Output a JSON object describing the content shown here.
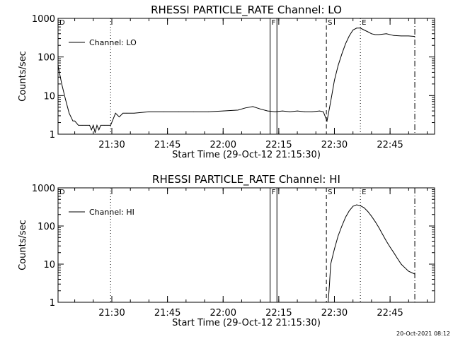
{
  "chart_data": [
    {
      "type": "line",
      "title": "RHESSI PARTICLE_RATE Channel: LO",
      "xlabel": "Start Time (29-Oct-12 21:15:30)",
      "ylabel": "Counts/sec",
      "yscale": "log",
      "ylim": [
        1,
        1000
      ],
      "xlim": [
        "21:15:30",
        "22:57:00"
      ],
      "yticks": [
        "1",
        "10",
        "100",
        "1000"
      ],
      "xticks": [
        "21:30",
        "21:45",
        "22:00",
        "22:15",
        "22:30",
        "22:45"
      ],
      "legend": {
        "position": "top-left",
        "entries": [
          "Channel: LO"
        ]
      },
      "event_markers": [
        {
          "label": "D",
          "time": "21:15:30",
          "style": "dash-dot"
        },
        {
          "label": "",
          "time": "21:29:40",
          "style": "dotted"
        },
        {
          "label": "F",
          "time": "22:12:40",
          "style": "solid"
        },
        {
          "label": "",
          "time": "22:14:30",
          "style": "solid"
        },
        {
          "label": "S",
          "time": "22:27:50",
          "style": "dashed"
        },
        {
          "label": "E",
          "time": "22:37:00",
          "style": "dotted"
        },
        {
          "label": "",
          "time": "22:51:40",
          "style": "dash-dot"
        }
      ],
      "series": [
        {
          "x": [
            "21:15:30",
            "21:16:30",
            "21:17:30",
            "21:18:30",
            "21:19:30",
            "21:20:00",
            "21:21:00",
            "21:22:00",
            "21:23:00",
            "21:24:00",
            "21:24:30",
            "21:25:00",
            "21:25:30",
            "21:26:00",
            "21:26:30",
            "21:27:00",
            "21:28:00",
            "21:29:00",
            "21:29:40",
            "21:31:00",
            "21:32:00",
            "21:33:00",
            "21:34:00",
            "21:36:00",
            "21:40:00",
            "21:44:00",
            "21:48:00",
            "21:52:00",
            "21:56:00",
            "22:00:00",
            "22:04:00",
            "22:06:00",
            "22:08:00",
            "22:10:00",
            "22:12:00",
            "22:14:00",
            "22:16:00",
            "22:18:00",
            "22:20:00",
            "22:22:00",
            "22:24:00",
            "22:26:00",
            "22:27:00",
            "22:28:00",
            "22:29:00",
            "22:30:00",
            "22:31:00",
            "22:32:00",
            "22:33:00",
            "22:34:00",
            "22:35:00",
            "22:36:00",
            "22:37:00",
            "22:38:00",
            "22:39:00",
            "22:40:00",
            "22:41:00",
            "22:42:00",
            "22:44:00",
            "22:46:00",
            "22:48:00",
            "22:50:00",
            "22:51:40"
          ],
          "values": [
            60,
            20,
            8,
            3.5,
            2.2,
            2.2,
            1.7,
            1.7,
            1.7,
            1.7,
            1.3,
            1.7,
            1.1,
            1.7,
            1.3,
            1.7,
            1.7,
            1.7,
            1.7,
            3.5,
            2.8,
            3.5,
            3.5,
            3.5,
            3.8,
            3.8,
            3.8,
            3.8,
            3.8,
            4.0,
            4.2,
            4.8,
            5.2,
            4.5,
            4.0,
            3.8,
            4.0,
            3.8,
            4.0,
            3.8,
            3.8,
            4.0,
            3.8,
            2.2,
            7,
            25,
            60,
            120,
            220,
            350,
            500,
            560,
            560,
            500,
            450,
            400,
            380,
            380,
            400,
            360,
            350,
            350,
            340
          ]
        }
      ]
    },
    {
      "type": "line",
      "title": "RHESSI PARTICLE_RATE Channel: HI",
      "xlabel": "Start Time (29-Oct-12 21:15:30)",
      "ylabel": "Counts/sec",
      "yscale": "log",
      "ylim": [
        1,
        1000
      ],
      "xlim": [
        "21:15:30",
        "22:57:00"
      ],
      "yticks": [
        "1",
        "10",
        "100",
        "1000"
      ],
      "xticks": [
        "21:30",
        "21:45",
        "22:00",
        "22:15",
        "22:30",
        "22:45"
      ],
      "legend": {
        "position": "top-left",
        "entries": [
          "Channel: HI"
        ]
      },
      "event_markers": [
        {
          "label": "D",
          "time": "21:15:30",
          "style": "dash-dot"
        },
        {
          "label": "",
          "time": "21:29:40",
          "style": "dotted"
        },
        {
          "label": "F",
          "time": "22:12:40",
          "style": "solid"
        },
        {
          "label": "",
          "time": "22:14:30",
          "style": "solid"
        },
        {
          "label": "S",
          "time": "22:27:50",
          "style": "dashed"
        },
        {
          "label": "E",
          "time": "22:37:00",
          "style": "dotted"
        },
        {
          "label": "",
          "time": "22:51:40",
          "style": "dash-dot"
        }
      ],
      "series": [
        {
          "x": [
            "22:28:20",
            "22:28:40",
            "22:29:00",
            "22:30:00",
            "22:31:00",
            "22:32:00",
            "22:33:00",
            "22:34:00",
            "22:35:00",
            "22:36:00",
            "22:37:00",
            "22:38:00",
            "22:39:00",
            "22:40:00",
            "22:41:00",
            "22:42:00",
            "22:43:00",
            "22:44:00",
            "22:45:00",
            "22:46:00",
            "22:47:00",
            "22:48:00",
            "22:49:00",
            "22:50:00",
            "22:51:40"
          ],
          "values": [
            1,
            3,
            10,
            25,
            55,
            100,
            170,
            250,
            330,
            360,
            340,
            300,
            240,
            180,
            130,
            90,
            60,
            40,
            28,
            20,
            14,
            10,
            8,
            6.5,
            5.5
          ]
        }
      ]
    }
  ],
  "timestamp": "20-Oct-2021 08:12"
}
